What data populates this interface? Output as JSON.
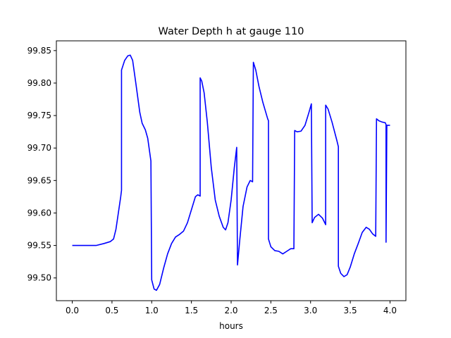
{
  "chart_data": {
    "type": "line",
    "title": "Water Depth h at gauge 110",
    "xlabel": "hours",
    "ylabel": "",
    "xlim": [
      -0.2,
      4.2
    ],
    "ylim": [
      99.465,
      99.865
    ],
    "grid": false,
    "legend": "none",
    "x_ticks": [
      0.0,
      0.5,
      1.0,
      1.5,
      2.0,
      2.5,
      3.0,
      3.5,
      4.0
    ],
    "x_tick_labels": [
      "0.0",
      "0.5",
      "1.0",
      "1.5",
      "2.0",
      "2.5",
      "3.0",
      "3.5",
      "4.0"
    ],
    "y_ticks": [
      99.5,
      99.55,
      99.6,
      99.65,
      99.7,
      99.75,
      99.8,
      99.85
    ],
    "y_tick_labels": [
      "99.50",
      "99.55",
      "99.60",
      "99.65",
      "99.70",
      "99.75",
      "99.80",
      "99.85"
    ],
    "series": [
      {
        "color": "#0000ff",
        "points": [
          [
            0.0,
            99.55
          ],
          [
            0.3,
            99.55
          ],
          [
            0.4,
            99.553
          ],
          [
            0.48,
            99.556
          ],
          [
            0.52,
            99.56
          ],
          [
            0.55,
            99.575
          ],
          [
            0.58,
            99.6
          ],
          [
            0.61,
            99.625
          ],
          [
            0.62,
            99.635
          ],
          [
            0.62,
            99.82
          ],
          [
            0.66,
            99.835
          ],
          [
            0.7,
            99.842
          ],
          [
            0.73,
            99.843
          ],
          [
            0.76,
            99.835
          ],
          [
            0.8,
            99.8
          ],
          [
            0.85,
            99.755
          ],
          [
            0.88,
            99.738
          ],
          [
            0.92,
            99.728
          ],
          [
            0.95,
            99.715
          ],
          [
            0.99,
            99.68
          ],
          [
            1.0,
            99.497
          ],
          [
            1.03,
            99.483
          ],
          [
            1.06,
            99.481
          ],
          [
            1.1,
            99.49
          ],
          [
            1.15,
            99.515
          ],
          [
            1.2,
            99.537
          ],
          [
            1.25,
            99.553
          ],
          [
            1.3,
            99.563
          ],
          [
            1.35,
            99.567
          ],
          [
            1.4,
            99.572
          ],
          [
            1.45,
            99.585
          ],
          [
            1.5,
            99.605
          ],
          [
            1.55,
            99.625
          ],
          [
            1.58,
            99.628
          ],
          [
            1.61,
            99.626
          ],
          [
            1.61,
            99.808
          ],
          [
            1.63,
            99.803
          ],
          [
            1.66,
            99.785
          ],
          [
            1.7,
            99.74
          ],
          [
            1.75,
            99.67
          ],
          [
            1.8,
            99.62
          ],
          [
            1.85,
            99.595
          ],
          [
            1.9,
            99.578
          ],
          [
            1.93,
            99.574
          ],
          [
            1.96,
            99.585
          ],
          [
            2.0,
            99.62
          ],
          [
            2.04,
            99.67
          ],
          [
            2.07,
            99.701
          ],
          [
            2.08,
            99.52
          ],
          [
            2.11,
            99.56
          ],
          [
            2.15,
            99.61
          ],
          [
            2.2,
            99.64
          ],
          [
            2.24,
            99.65
          ],
          [
            2.27,
            99.648
          ],
          [
            2.28,
            99.832
          ],
          [
            2.31,
            99.82
          ],
          [
            2.35,
            99.795
          ],
          [
            2.4,
            99.77
          ],
          [
            2.46,
            99.745
          ],
          [
            2.47,
            99.742
          ],
          [
            2.47,
            99.56
          ],
          [
            2.5,
            99.548
          ],
          [
            2.55,
            99.542
          ],
          [
            2.6,
            99.541
          ],
          [
            2.65,
            99.537
          ],
          [
            2.7,
            99.541
          ],
          [
            2.75,
            99.545
          ],
          [
            2.79,
            99.545
          ],
          [
            2.8,
            99.727
          ],
          [
            2.83,
            99.725
          ],
          [
            2.88,
            99.726
          ],
          [
            2.93,
            99.735
          ],
          [
            2.98,
            99.755
          ],
          [
            3.01,
            99.768
          ],
          [
            3.02,
            99.585
          ],
          [
            3.05,
            99.593
          ],
          [
            3.1,
            99.598
          ],
          [
            3.15,
            99.592
          ],
          [
            3.19,
            99.582
          ],
          [
            3.19,
            99.766
          ],
          [
            3.22,
            99.76
          ],
          [
            3.27,
            99.74
          ],
          [
            3.33,
            99.712
          ],
          [
            3.35,
            99.702
          ],
          [
            3.35,
            99.518
          ],
          [
            3.38,
            99.507
          ],
          [
            3.42,
            99.502
          ],
          [
            3.46,
            99.505
          ],
          [
            3.5,
            99.517
          ],
          [
            3.55,
            99.537
          ],
          [
            3.6,
            99.553
          ],
          [
            3.65,
            99.57
          ],
          [
            3.7,
            99.578
          ],
          [
            3.74,
            99.575
          ],
          [
            3.78,
            99.568
          ],
          [
            3.82,
            99.564
          ],
          [
            3.83,
            99.745
          ],
          [
            3.86,
            99.742
          ],
          [
            3.9,
            99.74
          ],
          [
            3.94,
            99.739
          ],
          [
            3.95,
            99.736
          ],
          [
            3.95,
            99.555
          ],
          [
            3.96,
            99.735
          ],
          [
            4.0,
            99.735
          ]
        ]
      }
    ]
  }
}
